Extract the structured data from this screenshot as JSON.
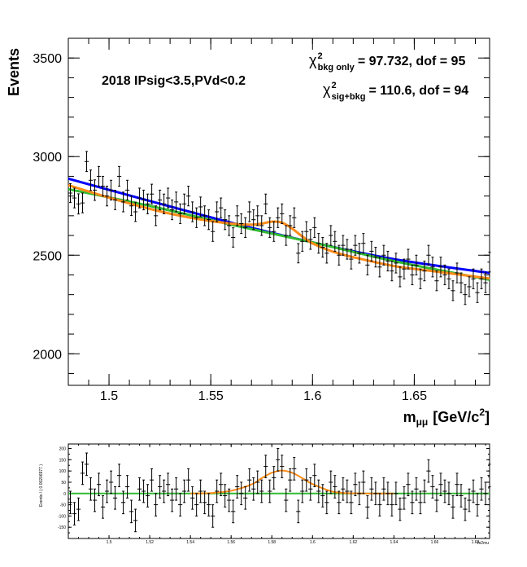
{
  "chart_data": [
    {
      "type": "scatter",
      "ylabel": "Events",
      "xlabel": "m",
      "xlabel_sub": "μμ",
      "xlabel_unit": "[GeV/c",
      "xlabel_unit_sup": "2",
      "xlabel_unit_close": "]",
      "xlim": [
        1.48,
        1.687
      ],
      "ylim": [
        1840,
        3600
      ],
      "x_ticks": [
        "1.5",
        "1.55",
        "1.6",
        "1.65"
      ],
      "y_ticks": [
        "2000",
        "2500",
        "3000",
        "3500"
      ],
      "annotation": "2018 IPsig<3.5,PVd<0.2",
      "chi2_bkg": {
        "symbol": "χ",
        "sup": "2",
        "sub": "bkg only",
        "text": "= 97.732, dof = 95"
      },
      "chi2_sig": {
        "symbol": "χ",
        "sup": "2",
        "sub": "sig+bkg",
        "text": "= 110.6, dof = 94"
      },
      "series": [
        {
          "color": "#0000ff",
          "x": [
            1.48,
            1.52,
            1.56,
            1.6,
            1.64,
            1.687
          ],
          "y": [
            2888,
            2775,
            2665,
            2565,
            2480,
            2410
          ]
        },
        {
          "color": "#33bb33",
          "x": [
            1.48,
            1.52,
            1.56,
            1.6,
            1.64,
            1.687
          ],
          "y": [
            2835,
            2750,
            2655,
            2565,
            2470,
            2375
          ]
        },
        {
          "color": "#ff8c1a",
          "x": [
            1.48,
            1.5,
            1.52,
            1.54,
            1.56,
            1.57,
            1.575,
            1.58,
            1.585,
            1.59,
            1.595,
            1.6,
            1.61,
            1.62,
            1.64,
            1.66,
            1.687
          ],
          "y": [
            2855,
            2792,
            2735,
            2690,
            2660,
            2655,
            2660,
            2670,
            2665,
            2635,
            2595,
            2560,
            2518,
            2490,
            2445,
            2418,
            2382
          ]
        }
      ],
      "points": [
        [
          1.481,
          2815,
          48
        ],
        [
          1.483,
          2790,
          50
        ],
        [
          1.485,
          2760,
          51
        ],
        [
          1.487,
          2765,
          50
        ],
        [
          1.489,
          2975,
          51
        ],
        [
          1.491,
          2880,
          52
        ],
        [
          1.493,
          2830,
          52
        ],
        [
          1.495,
          2900,
          50
        ],
        [
          1.497,
          2850,
          50
        ],
        [
          1.499,
          2800,
          50
        ],
        [
          1.501,
          2830,
          50
        ],
        [
          1.503,
          2780,
          49
        ],
        [
          1.505,
          2900,
          50
        ],
        [
          1.507,
          2770,
          50
        ],
        [
          1.509,
          2830,
          50
        ],
        [
          1.511,
          2750,
          49
        ],
        [
          1.513,
          2720,
          49
        ],
        [
          1.515,
          2790,
          50
        ],
        [
          1.517,
          2780,
          50
        ],
        [
          1.519,
          2760,
          50
        ],
        [
          1.521,
          2810,
          50
        ],
        [
          1.523,
          2700,
          50
        ],
        [
          1.525,
          2780,
          50
        ],
        [
          1.527,
          2760,
          50
        ],
        [
          1.529,
          2790,
          50
        ],
        [
          1.531,
          2730,
          50
        ],
        [
          1.533,
          2770,
          50
        ],
        [
          1.535,
          2710,
          50
        ],
        [
          1.537,
          2760,
          50
        ],
        [
          1.539,
          2800,
          50
        ],
        [
          1.541,
          2720,
          50
        ],
        [
          1.543,
          2690,
          50
        ],
        [
          1.545,
          2745,
          50
        ],
        [
          1.547,
          2700,
          50
        ],
        [
          1.549,
          2680,
          50
        ],
        [
          1.551,
          2620,
          50
        ],
        [
          1.553,
          2720,
          50
        ],
        [
          1.555,
          2740,
          50
        ],
        [
          1.557,
          2680,
          50
        ],
        [
          1.559,
          2650,
          50
        ],
        [
          1.561,
          2590,
          49
        ],
        [
          1.563,
          2700,
          50
        ],
        [
          1.565,
          2660,
          50
        ],
        [
          1.567,
          2640,
          50
        ],
        [
          1.569,
          2720,
          50
        ],
        [
          1.571,
          2680,
          50
        ],
        [
          1.573,
          2700,
          50
        ],
        [
          1.575,
          2650,
          50
        ],
        [
          1.577,
          2760,
          50
        ],
        [
          1.579,
          2640,
          50
        ],
        [
          1.581,
          2620,
          50
        ],
        [
          1.583,
          2690,
          50
        ],
        [
          1.585,
          2710,
          50
        ],
        [
          1.587,
          2600,
          50
        ],
        [
          1.589,
          2650,
          50
        ],
        [
          1.591,
          2690,
          50
        ],
        [
          1.593,
          2510,
          49
        ],
        [
          1.595,
          2570,
          50
        ],
        [
          1.597,
          2620,
          50
        ],
        [
          1.599,
          2580,
          50
        ],
        [
          1.601,
          2640,
          50
        ],
        [
          1.603,
          2560,
          50
        ],
        [
          1.605,
          2540,
          50
        ],
        [
          1.607,
          2510,
          50
        ],
        [
          1.609,
          2600,
          50
        ],
        [
          1.611,
          2570,
          50
        ],
        [
          1.613,
          2500,
          50
        ],
        [
          1.615,
          2550,
          50
        ],
        [
          1.617,
          2530,
          50
        ],
        [
          1.619,
          2480,
          50
        ],
        [
          1.621,
          2550,
          50
        ],
        [
          1.623,
          2510,
          50
        ],
        [
          1.625,
          2560,
          50
        ],
        [
          1.627,
          2450,
          50
        ],
        [
          1.629,
          2520,
          50
        ],
        [
          1.631,
          2490,
          50
        ],
        [
          1.633,
          2440,
          50
        ],
        [
          1.635,
          2500,
          50
        ],
        [
          1.637,
          2470,
          50
        ],
        [
          1.639,
          2420,
          50
        ],
        [
          1.641,
          2460,
          50
        ],
        [
          1.643,
          2390,
          50
        ],
        [
          1.645,
          2430,
          50
        ],
        [
          1.647,
          2480,
          50
        ],
        [
          1.649,
          2400,
          50
        ],
        [
          1.651,
          2450,
          50
        ],
        [
          1.653,
          2380,
          50
        ],
        [
          1.655,
          2420,
          50
        ],
        [
          1.657,
          2500,
          50
        ],
        [
          1.659,
          2440,
          50
        ],
        [
          1.661,
          2370,
          50
        ],
        [
          1.663,
          2440,
          50
        ],
        [
          1.665,
          2400,
          50
        ],
        [
          1.667,
          2380,
          50
        ],
        [
          1.669,
          2320,
          50
        ],
        [
          1.671,
          2410,
          50
        ],
        [
          1.673,
          2360,
          50
        ],
        [
          1.675,
          2300,
          50
        ],
        [
          1.677,
          2340,
          50
        ],
        [
          1.679,
          2380,
          50
        ],
        [
          1.681,
          2310,
          50
        ],
        [
          1.683,
          2380,
          50
        ],
        [
          1.685,
          2360,
          50
        ],
        [
          1.687,
          2465,
          50
        ]
      ]
    },
    {
      "type": "scatter",
      "ylabel": "Events / ( 0.00206977 )",
      "xlabel": "m2mu",
      "xlim": [
        1.48,
        1.687
      ],
      "ylim": [
        -200,
        220
      ],
      "x_ticks": [
        "1.5",
        "1.52",
        "1.54",
        "1.56",
        "1.58",
        "1.6",
        "1.62",
        "1.64",
        "1.66",
        "1.68"
      ],
      "y_ticks": [
        "-150",
        "-100",
        "-50",
        "0",
        "50",
        "100",
        "150",
        "200"
      ],
      "series": [
        {
          "color": "#33bb33",
          "x": [
            1.48,
            1.687
          ],
          "y": [
            0,
            0
          ]
        },
        {
          "color": "#ff8c1a",
          "x": [
            1.54,
            1.55,
            1.56,
            1.57,
            1.575,
            1.58,
            1.585,
            1.59,
            1.595,
            1.6,
            1.61,
            1.62,
            1.64
          ],
          "y": [
            0,
            2,
            12,
            40,
            68,
            92,
            102,
            92,
            68,
            42,
            8,
            1,
            0
          ]
        }
      ],
      "points": [
        [
          1.481,
          -40,
          50
        ],
        [
          1.483,
          -90,
          50
        ],
        [
          1.485,
          -70,
          50
        ],
        [
          1.487,
          90,
          50
        ],
        [
          1.489,
          130,
          50
        ],
        [
          1.491,
          20,
          50
        ],
        [
          1.493,
          -30,
          50
        ],
        [
          1.495,
          40,
          50
        ],
        [
          1.497,
          -60,
          50
        ],
        [
          1.499,
          10,
          50
        ],
        [
          1.501,
          50,
          50
        ],
        [
          1.503,
          -20,
          50
        ],
        [
          1.505,
          80,
          50
        ],
        [
          1.507,
          -40,
          50
        ],
        [
          1.509,
          30,
          50
        ],
        [
          1.511,
          -80,
          50
        ],
        [
          1.513,
          -120,
          50
        ],
        [
          1.515,
          20,
          50
        ],
        [
          1.517,
          10,
          50
        ],
        [
          1.519,
          -10,
          50
        ],
        [
          1.521,
          60,
          50
        ],
        [
          1.523,
          -50,
          50
        ],
        [
          1.525,
          30,
          50
        ],
        [
          1.527,
          10,
          50
        ],
        [
          1.529,
          40,
          50
        ],
        [
          1.531,
          -30,
          50
        ],
        [
          1.533,
          20,
          50
        ],
        [
          1.535,
          -50,
          50
        ],
        [
          1.537,
          10,
          50
        ],
        [
          1.539,
          60,
          50
        ],
        [
          1.541,
          -20,
          50
        ],
        [
          1.543,
          -50,
          50
        ],
        [
          1.545,
          10,
          50
        ],
        [
          1.547,
          -40,
          50
        ],
        [
          1.549,
          -50,
          50
        ],
        [
          1.551,
          -100,
          50
        ],
        [
          1.553,
          10,
          50
        ],
        [
          1.555,
          40,
          50
        ],
        [
          1.557,
          -10,
          50
        ],
        [
          1.559,
          -30,
          50
        ],
        [
          1.561,
          -80,
          50
        ],
        [
          1.563,
          30,
          50
        ],
        [
          1.565,
          0,
          50
        ],
        [
          1.567,
          -20,
          50
        ],
        [
          1.569,
          60,
          50
        ],
        [
          1.571,
          20,
          50
        ],
        [
          1.573,
          50,
          50
        ],
        [
          1.575,
          10,
          50
        ],
        [
          1.577,
          120,
          50
        ],
        [
          1.579,
          10,
          50
        ],
        [
          1.581,
          70,
          50
        ],
        [
          1.583,
          150,
          50
        ],
        [
          1.585,
          120,
          50
        ],
        [
          1.587,
          -30,
          50
        ],
        [
          1.589,
          60,
          50
        ],
        [
          1.591,
          110,
          50
        ],
        [
          1.593,
          -80,
          50
        ],
        [
          1.595,
          10,
          50
        ],
        [
          1.597,
          60,
          50
        ],
        [
          1.599,
          20,
          50
        ],
        [
          1.601,
          80,
          50
        ],
        [
          1.603,
          10,
          50
        ],
        [
          1.605,
          -10,
          50
        ],
        [
          1.607,
          -40,
          50
        ],
        [
          1.609,
          50,
          50
        ],
        [
          1.611,
          30,
          50
        ],
        [
          1.613,
          -40,
          50
        ],
        [
          1.615,
          20,
          50
        ],
        [
          1.617,
          10,
          50
        ],
        [
          1.619,
          -40,
          50
        ],
        [
          1.621,
          40,
          50
        ],
        [
          1.623,
          0,
          50
        ],
        [
          1.625,
          50,
          50
        ],
        [
          1.627,
          -60,
          50
        ],
        [
          1.629,
          20,
          50
        ],
        [
          1.631,
          0,
          50
        ],
        [
          1.633,
          -50,
          50
        ],
        [
          1.635,
          20,
          50
        ],
        [
          1.637,
          0,
          50
        ],
        [
          1.639,
          -50,
          50
        ],
        [
          1.641,
          0,
          50
        ],
        [
          1.643,
          -70,
          50
        ],
        [
          1.645,
          -20,
          50
        ],
        [
          1.647,
          40,
          50
        ],
        [
          1.649,
          -40,
          50
        ],
        [
          1.651,
          20,
          50
        ],
        [
          1.653,
          -40,
          50
        ],
        [
          1.655,
          10,
          50
        ],
        [
          1.657,
          100,
          50
        ],
        [
          1.659,
          30,
          50
        ],
        [
          1.661,
          -30,
          50
        ],
        [
          1.663,
          40,
          50
        ],
        [
          1.665,
          10,
          50
        ],
        [
          1.667,
          0,
          50
        ],
        [
          1.669,
          -60,
          50
        ],
        [
          1.671,
          40,
          50
        ],
        [
          1.673,
          -10,
          50
        ],
        [
          1.675,
          -70,
          50
        ],
        [
          1.677,
          -30,
          50
        ],
        [
          1.679,
          10,
          50
        ],
        [
          1.681,
          -50,
          50
        ],
        [
          1.683,
          20,
          50
        ],
        [
          1.685,
          0,
          50
        ],
        [
          1.687,
          80,
          50
        ]
      ]
    }
  ]
}
